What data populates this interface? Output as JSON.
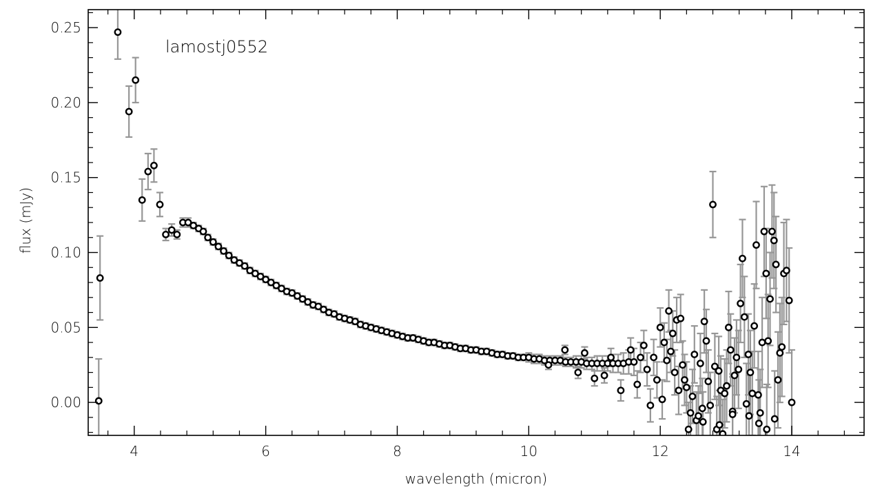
{
  "chart_data": {
    "type": "scatter",
    "title": "",
    "annotation": "lamostj0552",
    "xlabel": "wavelength (micron)",
    "ylabel": "flux (mJy)",
    "xlim": [
      3.3,
      15.1
    ],
    "ylim": [
      -0.022,
      0.262
    ],
    "x_ticks": [
      4,
      6,
      8,
      10,
      12,
      14
    ],
    "x_tick_labels": [
      "4",
      "6",
      "8",
      "10",
      "12",
      "14"
    ],
    "y_ticks": [
      0.0,
      0.05,
      0.1,
      0.15,
      0.2,
      0.25
    ],
    "y_tick_labels": [
      "0.00",
      "0.05",
      "0.10",
      "0.15",
      "0.20",
      "0.25"
    ],
    "grid": false,
    "marker": "open-circle",
    "marker_color": "#000000",
    "errorbar_color": "#969696",
    "series": [
      {
        "points": [
          [
            3.46,
            0.001,
            0.028
          ],
          [
            3.48,
            0.083,
            0.028
          ],
          [
            3.75,
            0.247,
            0.018
          ],
          [
            3.92,
            0.194,
            0.017
          ],
          [
            4.02,
            0.215,
            0.015
          ],
          [
            4.12,
            0.135,
            0.014
          ],
          [
            4.21,
            0.154,
            0.012
          ],
          [
            4.3,
            0.158,
            0.011
          ],
          [
            4.39,
            0.132,
            0.008
          ],
          [
            4.48,
            0.112,
            0.004
          ],
          [
            4.57,
            0.115,
            0.004
          ],
          [
            4.65,
            0.112,
            0.003
          ],
          [
            4.74,
            0.12,
            0.003
          ],
          [
            4.82,
            0.12,
            0.003
          ],
          [
            4.9,
            0.118,
            0.002
          ],
          [
            4.98,
            0.116,
            0.002
          ],
          [
            5.05,
            0.114,
            0.002
          ],
          [
            5.12,
            0.11,
            0.002
          ],
          [
            5.2,
            0.107,
            0.002
          ],
          [
            5.28,
            0.104,
            0.002
          ],
          [
            5.36,
            0.101,
            0.002
          ],
          [
            5.44,
            0.098,
            0.002
          ],
          [
            5.52,
            0.095,
            0.002
          ],
          [
            5.6,
            0.093,
            0.002
          ],
          [
            5.68,
            0.091,
            0.002
          ],
          [
            5.76,
            0.088,
            0.002
          ],
          [
            5.84,
            0.086,
            0.002
          ],
          [
            5.92,
            0.084,
            0.002
          ],
          [
            6.0,
            0.082,
            0.002
          ],
          [
            6.08,
            0.08,
            0.002
          ],
          [
            6.16,
            0.078,
            0.002
          ],
          [
            6.24,
            0.076,
            0.002
          ],
          [
            6.32,
            0.074,
            0.002
          ],
          [
            6.4,
            0.073,
            0.002
          ],
          [
            6.48,
            0.071,
            0.002
          ],
          [
            6.56,
            0.069,
            0.002
          ],
          [
            6.64,
            0.067,
            0.002
          ],
          [
            6.72,
            0.065,
            0.002
          ],
          [
            6.8,
            0.064,
            0.002
          ],
          [
            6.88,
            0.062,
            0.002
          ],
          [
            6.96,
            0.06,
            0.002
          ],
          [
            7.04,
            0.059,
            0.002
          ],
          [
            7.12,
            0.057,
            0.002
          ],
          [
            7.2,
            0.056,
            0.002
          ],
          [
            7.28,
            0.055,
            0.002
          ],
          [
            7.36,
            0.054,
            0.002
          ],
          [
            7.44,
            0.052,
            0.002
          ],
          [
            7.52,
            0.051,
            0.002
          ],
          [
            7.6,
            0.05,
            0.002
          ],
          [
            7.68,
            0.049,
            0.002
          ],
          [
            7.76,
            0.048,
            0.002
          ],
          [
            7.84,
            0.047,
            0.002
          ],
          [
            7.92,
            0.046,
            0.002
          ],
          [
            8.0,
            0.045,
            0.002
          ],
          [
            8.08,
            0.044,
            0.002
          ],
          [
            8.16,
            0.043,
            0.002
          ],
          [
            8.24,
            0.043,
            0.002
          ],
          [
            8.32,
            0.042,
            0.002
          ],
          [
            8.4,
            0.041,
            0.002
          ],
          [
            8.48,
            0.04,
            0.002
          ],
          [
            8.56,
            0.04,
            0.002
          ],
          [
            8.64,
            0.039,
            0.002
          ],
          [
            8.72,
            0.038,
            0.002
          ],
          [
            8.8,
            0.038,
            0.002
          ],
          [
            8.88,
            0.037,
            0.002
          ],
          [
            8.96,
            0.036,
            0.002
          ],
          [
            9.04,
            0.036,
            0.002
          ],
          [
            9.12,
            0.035,
            0.002
          ],
          [
            9.2,
            0.035,
            0.002
          ],
          [
            9.28,
            0.034,
            0.002
          ],
          [
            9.36,
            0.034,
            0.002
          ],
          [
            9.44,
            0.033,
            0.002
          ],
          [
            9.52,
            0.032,
            0.002
          ],
          [
            9.6,
            0.032,
            0.002
          ],
          [
            9.68,
            0.031,
            0.002
          ],
          [
            9.76,
            0.031,
            0.002
          ],
          [
            9.84,
            0.03,
            0.002
          ],
          [
            9.92,
            0.03,
            0.002
          ],
          [
            10.0,
            0.03,
            0.003
          ],
          [
            10.08,
            0.029,
            0.003
          ],
          [
            10.16,
            0.029,
            0.003
          ],
          [
            10.24,
            0.028,
            0.003
          ],
          [
            10.32,
            0.028,
            0.003
          ],
          [
            10.4,
            0.028,
            0.003
          ],
          [
            10.48,
            0.028,
            0.003
          ],
          [
            10.56,
            0.027,
            0.003
          ],
          [
            10.64,
            0.027,
            0.003
          ],
          [
            10.72,
            0.027,
            0.004
          ],
          [
            10.8,
            0.027,
            0.004
          ],
          [
            10.88,
            0.026,
            0.004
          ],
          [
            10.96,
            0.026,
            0.004
          ],
          [
            11.04,
            0.026,
            0.005
          ],
          [
            11.12,
            0.026,
            0.005
          ],
          [
            11.2,
            0.026,
            0.005
          ],
          [
            11.28,
            0.026,
            0.006
          ],
          [
            11.36,
            0.026,
            0.006
          ],
          [
            11.44,
            0.026,
            0.007
          ],
          [
            11.52,
            0.027,
            0.008
          ],
          [
            11.6,
            0.027,
            0.009
          ],
          [
            10.3,
            0.025,
            0.003
          ],
          [
            10.55,
            0.035,
            0.003
          ],
          [
            10.75,
            0.02,
            0.004
          ],
          [
            10.85,
            0.033,
            0.004
          ],
          [
            11.0,
            0.016,
            0.005
          ],
          [
            11.15,
            0.018,
            0.005
          ],
          [
            11.25,
            0.03,
            0.006
          ],
          [
            11.4,
            0.008,
            0.007
          ],
          [
            11.55,
            0.035,
            0.008
          ],
          [
            11.65,
            0.012,
            0.009
          ],
          [
            11.7,
            0.03,
            0.01
          ],
          [
            11.75,
            0.038,
            0.01
          ],
          [
            11.8,
            0.022,
            0.011
          ],
          [
            11.85,
            -0.002,
            0.011
          ],
          [
            11.9,
            0.03,
            0.012
          ],
          [
            11.95,
            0.015,
            0.012
          ],
          [
            12.0,
            0.05,
            0.013
          ],
          [
            12.03,
            0.002,
            0.013
          ],
          [
            12.06,
            0.04,
            0.013
          ],
          [
            12.1,
            0.028,
            0.014
          ],
          [
            12.13,
            0.061,
            0.014
          ],
          [
            12.16,
            0.034,
            0.014
          ],
          [
            12.19,
            0.046,
            0.015
          ],
          [
            12.22,
            0.02,
            0.015
          ],
          [
            12.25,
            0.055,
            0.015
          ],
          [
            12.28,
            0.008,
            0.016
          ],
          [
            12.31,
            0.056,
            0.016
          ],
          [
            12.34,
            0.025,
            0.016
          ],
          [
            12.37,
            0.015,
            0.017
          ],
          [
            12.4,
            0.01,
            0.017
          ],
          [
            12.43,
            -0.018,
            0.018
          ],
          [
            12.46,
            -0.007,
            0.018
          ],
          [
            12.49,
            0.004,
            0.018
          ],
          [
            12.52,
            0.032,
            0.019
          ],
          [
            12.55,
            -0.012,
            0.019
          ],
          [
            12.58,
            -0.009,
            0.02
          ],
          [
            12.61,
            0.026,
            0.02
          ],
          [
            12.64,
            -0.004,
            0.02
          ],
          [
            12.67,
            0.054,
            0.021
          ],
          [
            12.7,
            0.041,
            0.021
          ],
          [
            12.73,
            0.014,
            0.021
          ],
          [
            12.76,
            -0.002,
            0.022
          ],
          [
            12.8,
            0.132,
            0.022
          ],
          [
            12.83,
            0.024,
            0.022
          ],
          [
            12.86,
            -0.018,
            0.022
          ],
          [
            12.89,
            0.021,
            0.023
          ],
          [
            12.92,
            0.008,
            0.023
          ],
          [
            12.95,
            -0.021,
            0.023
          ],
          [
            12.98,
            0.006,
            0.023
          ],
          [
            13.01,
            0.011,
            0.024
          ],
          [
            13.04,
            0.05,
            0.024
          ],
          [
            13.07,
            0.035,
            0.024
          ],
          [
            13.1,
            -0.006,
            0.025
          ],
          [
            13.13,
            0.018,
            0.025
          ],
          [
            13.16,
            0.03,
            0.025
          ],
          [
            13.19,
            0.022,
            0.026
          ],
          [
            13.22,
            0.066,
            0.026
          ],
          [
            13.25,
            0.096,
            0.026
          ],
          [
            13.28,
            0.057,
            0.027
          ],
          [
            13.31,
            -0.001,
            0.027
          ],
          [
            13.34,
            0.032,
            0.027
          ],
          [
            13.37,
            0.02,
            0.028
          ],
          [
            13.4,
            0.006,
            0.028
          ],
          [
            13.43,
            0.051,
            0.028
          ],
          [
            13.46,
            0.105,
            0.029
          ],
          [
            13.49,
            0.005,
            0.029
          ],
          [
            13.52,
            -0.007,
            0.029
          ],
          [
            13.55,
            0.04,
            0.03
          ],
          [
            13.58,
            0.114,
            0.03
          ],
          [
            13.61,
            0.086,
            0.03
          ],
          [
            13.64,
            0.041,
            0.031
          ],
          [
            13.67,
            0.069,
            0.031
          ],
          [
            13.7,
            0.114,
            0.031
          ],
          [
            13.73,
            0.108,
            0.032
          ],
          [
            13.76,
            0.092,
            0.032
          ],
          [
            13.79,
            0.015,
            0.032
          ],
          [
            13.82,
            0.033,
            0.033
          ],
          [
            13.85,
            0.037,
            0.033
          ],
          [
            13.88,
            0.086,
            0.034
          ],
          [
            13.92,
            0.088,
            0.034
          ],
          [
            13.96,
            0.068,
            0.035
          ],
          [
            14.0,
            0.0,
            0.035
          ],
          [
            13.5,
            -0.014,
            0.029
          ],
          [
            13.62,
            -0.018,
            0.03
          ],
          [
            13.74,
            -0.011,
            0.032
          ],
          [
            13.1,
            -0.008,
            0.025
          ],
          [
            12.65,
            -0.013,
            0.02
          ],
          [
            12.9,
            -0.015,
            0.023
          ],
          [
            13.35,
            -0.009,
            0.027
          ]
        ]
      }
    ]
  }
}
